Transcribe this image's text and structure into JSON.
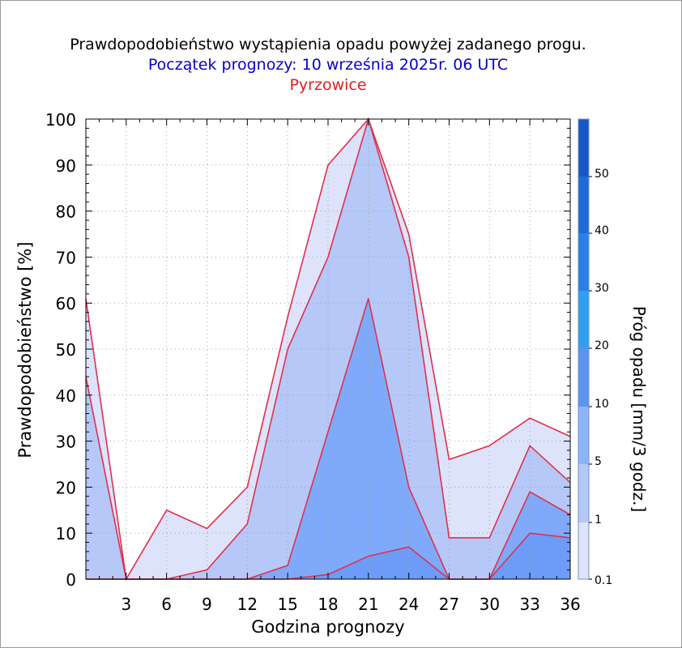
{
  "header": {
    "title": "Prawdopodobieństwo wystąpienia opadu powyżej zadanego progu.",
    "subtitle": "Początek prognozy: 10 września 2025r. 06 UTC",
    "location": "Pyrzowice"
  },
  "chart_data": {
    "type": "area",
    "title": "Prawdopodobieństwo wystąpienia opadu powyżej zadanego progu.",
    "xlabel": "Godzina prognozy",
    "ylabel": "Prawdopodobieństwo [%]",
    "xlim": [
      0,
      36
    ],
    "ylim": [
      0,
      100
    ],
    "x_ticks": [
      3,
      6,
      9,
      12,
      15,
      18,
      21,
      24,
      27,
      30,
      33,
      36
    ],
    "y_ticks": [
      0,
      10,
      20,
      30,
      40,
      50,
      60,
      70,
      80,
      90,
      100
    ],
    "grid": true,
    "x": [
      0,
      3,
      6,
      9,
      12,
      15,
      18,
      21,
      24,
      27,
      30,
      33,
      36
    ],
    "series": [
      {
        "name": "0.1",
        "color": "#dde3fb",
        "values": [
          61,
          0,
          15,
          11,
          20,
          57,
          90,
          100,
          75,
          26,
          29,
          35,
          31
        ]
      },
      {
        "name": "1",
        "color": "#b5c8f7",
        "values": [
          44,
          0,
          0,
          2,
          12,
          50,
          70,
          100,
          70,
          9,
          9,
          29,
          21
        ]
      },
      {
        "name": "5",
        "color": "#7faafb",
        "values": [
          0,
          0,
          0,
          0,
          0,
          3,
          32,
          61,
          20,
          0,
          0,
          19,
          14
        ]
      },
      {
        "name": "10",
        "color": "#6c9cf8",
        "values": [
          0,
          0,
          0,
          0,
          0,
          0,
          1,
          5,
          7,
          0,
          0,
          10,
          9
        ]
      }
    ],
    "colorbar": {
      "label": "Próg opadu [mm/3 godz.]",
      "tick_labels": [
        "0.1",
        "1",
        "5",
        "10",
        "20",
        "30",
        "40",
        "50"
      ],
      "colors": [
        "#dde3fb",
        "#b5c8f7",
        "#8eb4f8",
        "#5a94ee",
        "#2f9ff2",
        "#2a7fe8",
        "#1f6ad9",
        "#1855c8",
        "#0d3eaa"
      ]
    }
  }
}
